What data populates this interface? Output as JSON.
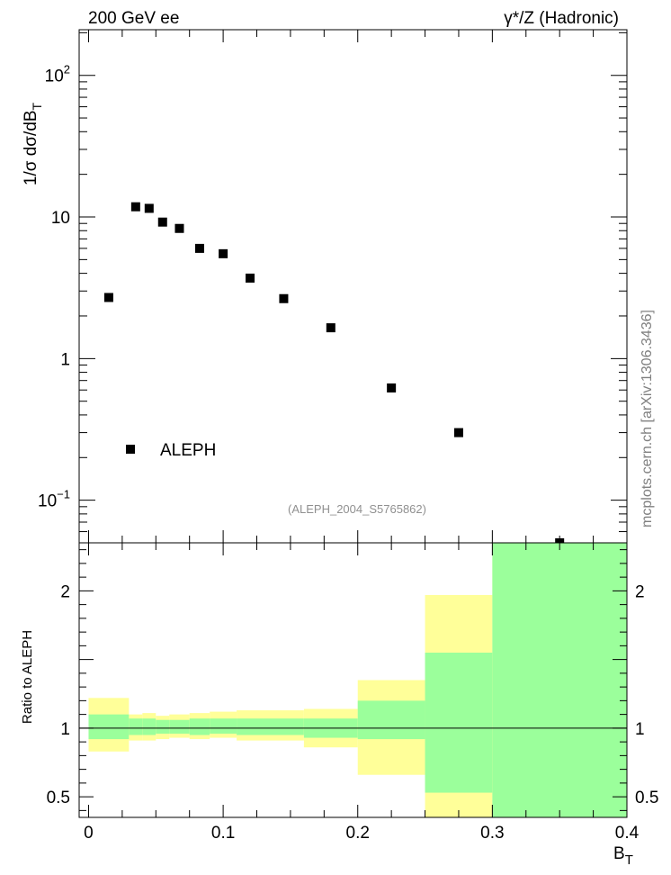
{
  "labels": {
    "top_left": "200 GeV ee",
    "top_right": "γ*/Z (Hadronic)",
    "y_axis_upper": "1/σ  dσ/dB",
    "y_axis_upper_sub": "T",
    "y_axis_lower": "Ratio to ALEPH",
    "x_axis": "B",
    "x_axis_sub": "T",
    "analysis": "(ALEPH_2004_S5765862)",
    "side_note": "mcplots.cern.ch [arXiv:1306.3436]"
  },
  "chart_data": [
    {
      "type": "scatter",
      "title": "",
      "xlabel": "B_T",
      "ylabel": "1/σ dσ/dB_T",
      "yscale": "log",
      "xlim": [
        -0.007,
        0.4
      ],
      "ylim": [
        0.05,
        210
      ],
      "series": [
        {
          "name": "ALEPH",
          "marker": "square",
          "x": [
            0.015,
            0.035,
            0.045,
            0.055,
            0.0675,
            0.0825,
            0.1,
            0.12,
            0.145,
            0.18,
            0.225,
            0.275,
            0.35
          ],
          "y": [
            2.7,
            11.8,
            11.5,
            9.2,
            8.3,
            6.0,
            5.5,
            3.7,
            2.65,
            1.65,
            0.62,
            0.3,
            0.05
          ]
        }
      ],
      "y_tick_labels": [
        {
          "value": 100,
          "base": "10",
          "exp": "2"
        },
        {
          "value": 10,
          "base": "10",
          "exp": ""
        },
        {
          "value": 1,
          "base": "1",
          "exp": ""
        },
        {
          "value": 0.1,
          "base": "10",
          "exp": "−1"
        }
      ],
      "legend": "bottom-left"
    },
    {
      "type": "area",
      "title": "",
      "xlabel": "B_T",
      "ylabel": "Ratio to ALEPH",
      "xlim": [
        -0.007,
        0.4
      ],
      "ylim": [
        0.35,
        2.35
      ],
      "x_ticks": [
        "0",
        "0.1",
        "0.2",
        "0.3",
        "0.4"
      ],
      "x_tick_values": [
        0,
        0.1,
        0.2,
        0.3,
        0.4
      ],
      "y_ticks": [
        "0.5",
        "1",
        "2"
      ],
      "y_tick_values": [
        0.5,
        1,
        2
      ],
      "reference_line": 1,
      "bands": {
        "bin_edges": [
          0.0,
          0.03,
          0.04,
          0.05,
          0.06,
          0.075,
          0.09,
          0.11,
          0.13,
          0.16,
          0.2,
          0.25,
          0.3,
          0.4
        ],
        "stat_lo": [
          0.92,
          0.95,
          0.95,
          0.96,
          0.96,
          0.95,
          0.96,
          0.95,
          0.95,
          0.93,
          0.92,
          0.53,
          0.35
        ],
        "stat_hi": [
          1.1,
          1.07,
          1.07,
          1.06,
          1.06,
          1.07,
          1.07,
          1.07,
          1.07,
          1.07,
          1.2,
          1.55,
          2.35
        ],
        "total_lo": [
          0.83,
          0.91,
          0.91,
          0.92,
          0.93,
          0.92,
          0.93,
          0.91,
          0.91,
          0.86,
          0.66,
          0.35,
          0.35
        ],
        "total_hi": [
          1.22,
          1.1,
          1.11,
          1.09,
          1.1,
          1.11,
          1.12,
          1.13,
          1.13,
          1.14,
          1.35,
          1.97,
          2.35
        ],
        "stat_color": "#9bff9b",
        "total_color": "#ffff99"
      }
    }
  ]
}
